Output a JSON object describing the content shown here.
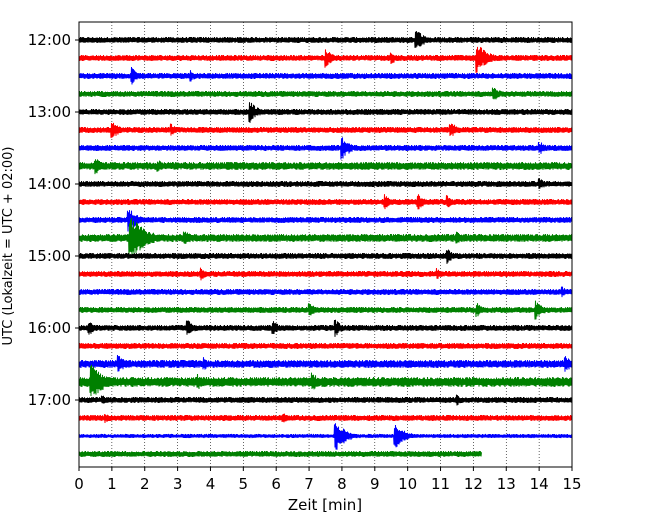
{
  "chart_data": {
    "type": "line",
    "title": "",
    "xlabel": "Zeit  [min]",
    "ylabel": "UTC (Lokalzeit = UTC + 02:00)",
    "xlim": [
      0,
      15
    ],
    "x_ticks": [
      "0",
      "1",
      "2",
      "3",
      "4",
      "5",
      "6",
      "7",
      "8",
      "9",
      "10",
      "11",
      "12",
      "13",
      "14",
      "15"
    ],
    "y_tick_labels": [
      "12:00",
      "13:00",
      "14:00",
      "15:00",
      "16:00",
      "17:00"
    ],
    "grid": {
      "x": true,
      "y": false,
      "style": "dotted"
    },
    "line_colors": [
      "#000000",
      "#ff0000",
      "#0000ff",
      "#008000"
    ],
    "traces": [
      {
        "time": "12:00",
        "color": "#000000",
        "amplitude": 3,
        "events": [
          {
            "x": 10.25,
            "amp": 12
          }
        ]
      },
      {
        "time": "12:15",
        "color": "#ff0000",
        "amplitude": 3,
        "events": [
          {
            "x": 7.5,
            "amp": 10
          },
          {
            "x": 9.5,
            "amp": 7
          },
          {
            "x": 12.1,
            "amp": 16
          }
        ]
      },
      {
        "time": "12:30",
        "color": "#0000ff",
        "amplitude": 3,
        "events": [
          {
            "x": 1.6,
            "amp": 9
          },
          {
            "x": 3.4,
            "amp": 6
          }
        ]
      },
      {
        "time": "12:45",
        "color": "#008000",
        "amplitude": 3,
        "events": [
          {
            "x": 12.6,
            "amp": 9
          }
        ]
      },
      {
        "time": "13:00",
        "color": "#000000",
        "amplitude": 3,
        "events": [
          {
            "x": 5.2,
            "amp": 11
          }
        ]
      },
      {
        "time": "13:15",
        "color": "#ff0000",
        "amplitude": 3,
        "events": [
          {
            "x": 1.0,
            "amp": 10
          },
          {
            "x": 2.8,
            "amp": 7
          },
          {
            "x": 11.3,
            "amp": 9
          }
        ]
      },
      {
        "time": "13:30",
        "color": "#0000ff",
        "amplitude": 3,
        "events": [
          {
            "x": 8.0,
            "amp": 12
          },
          {
            "x": 14.0,
            "amp": 8
          }
        ]
      },
      {
        "time": "13:45",
        "color": "#008000",
        "amplitude": 4,
        "events": [
          {
            "x": 0.5,
            "amp": 9
          },
          {
            "x": 2.4,
            "amp": 7
          }
        ]
      },
      {
        "time": "14:00",
        "color": "#000000",
        "amplitude": 3,
        "events": [
          {
            "x": 14.0,
            "amp": 7
          }
        ]
      },
      {
        "time": "14:15",
        "color": "#ff0000",
        "amplitude": 3,
        "events": [
          {
            "x": 9.3,
            "amp": 8
          },
          {
            "x": 10.3,
            "amp": 9
          },
          {
            "x": 11.2,
            "amp": 7
          }
        ]
      },
      {
        "time": "14:30",
        "color": "#0000ff",
        "amplitude": 3,
        "events": [
          {
            "x": 1.5,
            "amp": 13
          }
        ]
      },
      {
        "time": "14:45",
        "color": "#008000",
        "amplitude": 4,
        "events": [
          {
            "x": 1.55,
            "amp": 24
          },
          {
            "x": 3.2,
            "amp": 9
          },
          {
            "x": 11.5,
            "amp": 7
          }
        ]
      },
      {
        "time": "15:00",
        "color": "#000000",
        "amplitude": 3,
        "events": [
          {
            "x": 11.2,
            "amp": 8
          }
        ]
      },
      {
        "time": "15:15",
        "color": "#ff0000",
        "amplitude": 3,
        "events": [
          {
            "x": 3.7,
            "amp": 7
          },
          {
            "x": 10.9,
            "amp": 6
          }
        ]
      },
      {
        "time": "15:30",
        "color": "#0000ff",
        "amplitude": 3,
        "events": [
          {
            "x": 14.7,
            "amp": 6
          }
        ]
      },
      {
        "time": "15:45",
        "color": "#008000",
        "amplitude": 3,
        "events": [
          {
            "x": 7.0,
            "amp": 8
          },
          {
            "x": 12.1,
            "amp": 8
          },
          {
            "x": 13.9,
            "amp": 10
          }
        ]
      },
      {
        "time": "16:00",
        "color": "#000000",
        "amplitude": 3,
        "events": [
          {
            "x": 0.3,
            "amp": 8
          },
          {
            "x": 3.3,
            "amp": 9
          },
          {
            "x": 5.9,
            "amp": 8
          },
          {
            "x": 7.8,
            "amp": 9
          }
        ]
      },
      {
        "time": "16:15",
        "color": "#ff0000",
        "amplitude": 3,
        "events": []
      },
      {
        "time": "16:30",
        "color": "#0000ff",
        "amplitude": 4,
        "events": [
          {
            "x": 1.2,
            "amp": 10
          },
          {
            "x": 3.8,
            "amp": 7
          },
          {
            "x": 14.8,
            "amp": 9
          }
        ]
      },
      {
        "time": "16:45",
        "color": "#008000",
        "amplitude": 5,
        "events": [
          {
            "x": 0.35,
            "amp": 20
          },
          {
            "x": 3.6,
            "amp": 9
          },
          {
            "x": 7.1,
            "amp": 10
          }
        ]
      },
      {
        "time": "17:00",
        "color": "#000000",
        "amplitude": 3,
        "events": [
          {
            "x": 0.7,
            "amp": 6
          },
          {
            "x": 11.5,
            "amp": 6
          }
        ]
      },
      {
        "time": "17:15",
        "color": "#ff0000",
        "amplitude": 3,
        "events": [
          {
            "x": 0.8,
            "amp": 6
          },
          {
            "x": 6.2,
            "amp": 6
          }
        ]
      },
      {
        "time": "17:30",
        "color": "#0000ff",
        "amplitude": 2,
        "events": [
          {
            "x": 7.8,
            "amp": 16
          },
          {
            "x": 9.6,
            "amp": 14
          }
        ]
      },
      {
        "time": "17:45",
        "color": "#008000",
        "amplitude": 3,
        "end_x": 12.25,
        "events": []
      }
    ]
  }
}
